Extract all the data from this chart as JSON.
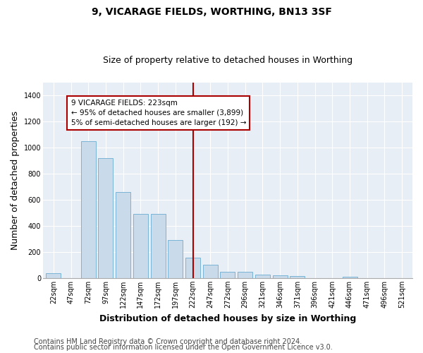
{
  "title": "9, VICARAGE FIELDS, WORTHING, BN13 3SF",
  "subtitle": "Size of property relative to detached houses in Worthing",
  "xlabel": "Distribution of detached houses by size in Worthing",
  "ylabel": "Number of detached properties",
  "categories": [
    "22sqm",
    "47sqm",
    "72sqm",
    "97sqm",
    "122sqm",
    "147sqm",
    "172sqm",
    "197sqm",
    "222sqm",
    "247sqm",
    "272sqm",
    "296sqm",
    "321sqm",
    "346sqm",
    "371sqm",
    "396sqm",
    "421sqm",
    "446sqm",
    "471sqm",
    "496sqm",
    "521sqm"
  ],
  "values": [
    35,
    2,
    1050,
    920,
    660,
    490,
    490,
    290,
    155,
    100,
    50,
    50,
    25,
    20,
    15,
    2,
    2,
    12,
    2,
    2,
    2
  ],
  "bar_color": "#c9daea",
  "bar_edgecolor": "#6aabcf",
  "vline_x_idx": 8,
  "vline_color": "#aa0000",
  "annotation_text": "9 VICARAGE FIELDS: 223sqm\n← 95% of detached houses are smaller (3,899)\n5% of semi-detached houses are larger (192) →",
  "annotation_box_facecolor": "#ffffff",
  "annotation_box_edgecolor": "#aa0000",
  "ylim": [
    0,
    1500
  ],
  "yticks": [
    0,
    200,
    400,
    600,
    800,
    1000,
    1200,
    1400
  ],
  "footer1": "Contains HM Land Registry data © Crown copyright and database right 2024.",
  "footer2": "Contains public sector information licensed under the Open Government Licence v3.0.",
  "fig_bg_color": "#ffffff",
  "plot_bg_color": "#e8eef5",
  "grid_color": "#ffffff",
  "title_fontsize": 10,
  "subtitle_fontsize": 9,
  "axis_label_fontsize": 9,
  "tick_fontsize": 7,
  "footer_fontsize": 7,
  "annotation_fontsize": 7.5
}
